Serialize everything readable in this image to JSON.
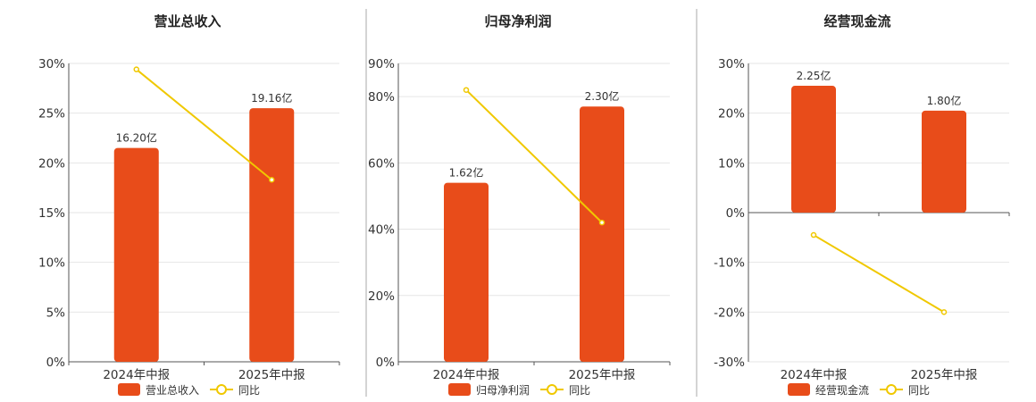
{
  "colors": {
    "bar": "#e84c1a",
    "line": "#f0c800"
  },
  "legend_line_label": "同比",
  "chart_data": [
    {
      "type": "bar",
      "title": "营业总收入",
      "categories": [
        "2024年中报",
        "2025年中报"
      ],
      "series": [
        {
          "name": "营业总收入",
          "type": "bar",
          "values": [
            21.5,
            25.5
          ],
          "labels": [
            "16.20亿",
            "19.16亿"
          ]
        },
        {
          "name": "同比",
          "type": "line",
          "values": [
            29.4,
            18.3
          ]
        }
      ],
      "yticks": [
        0,
        5,
        10,
        15,
        20,
        25,
        30
      ],
      "ylim": [
        0,
        30
      ],
      "tick_suffix": "%",
      "grid": true,
      "legend": "bottom"
    },
    {
      "type": "bar",
      "title": "归母净利润",
      "categories": [
        "2024年中报",
        "2025年中报"
      ],
      "series": [
        {
          "name": "归母净利润",
          "type": "bar",
          "values": [
            54,
            77
          ],
          "labels": [
            "1.62亿",
            "2.30亿"
          ]
        },
        {
          "name": "同比",
          "type": "line",
          "values": [
            82,
            42
          ]
        }
      ],
      "yticks": [
        0,
        20,
        40,
        60,
        80,
        90
      ],
      "ylim": [
        0,
        90
      ],
      "tick_suffix": "%",
      "grid": true,
      "legend": "bottom"
    },
    {
      "type": "bar",
      "title": "经营现金流",
      "categories": [
        "2024年中报",
        "2025年中报"
      ],
      "series": [
        {
          "name": "经营现金流",
          "type": "bar",
          "values": [
            25.5,
            20.5
          ],
          "labels": [
            "2.25亿",
            "1.80亿"
          ]
        },
        {
          "name": "同比",
          "type": "line",
          "values": [
            -4.5,
            -20
          ]
        }
      ],
      "yticks": [
        -30,
        -20,
        -10,
        0,
        10,
        20,
        30
      ],
      "ylim": [
        -30,
        30
      ],
      "tick_suffix": "%",
      "grid": true,
      "legend": "bottom"
    }
  ]
}
